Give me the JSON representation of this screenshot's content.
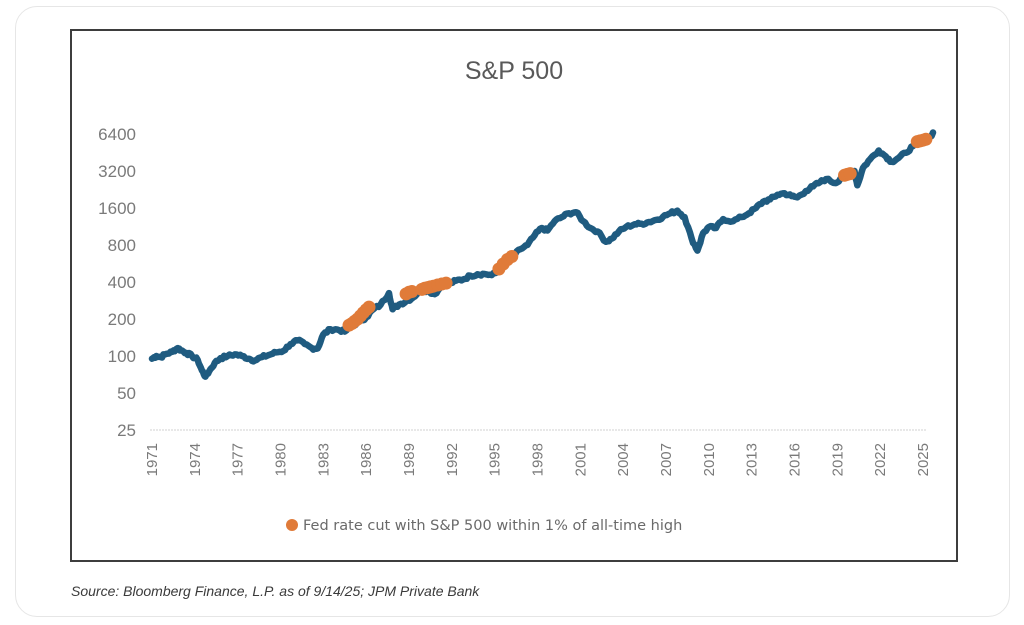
{
  "source_note": "Source: Bloomberg Finance, L.P. as of 9/14/25; JPM Private Bank",
  "colors": {
    "series": "#1f5b80",
    "highlight": "#e07b39",
    "axis_text": "#7a7a7a",
    "title": "#595959"
  },
  "chart_data": {
    "type": "line",
    "title": "S&P 500",
    "xlabel": "",
    "ylabel": "",
    "yscale": "log2",
    "ylim": [
      25,
      6400
    ],
    "xlim": [
      1971,
      2025.7
    ],
    "y_ticks": [
      6400,
      3200,
      1600,
      800,
      400,
      200,
      100,
      50,
      25
    ],
    "x_ticks": [
      "1971",
      "1974",
      "1977",
      "1980",
      "1983",
      "1986",
      "1989",
      "1992",
      "1995",
      "1998",
      "2001",
      "2004",
      "2007",
      "2010",
      "2013",
      "2016",
      "2019",
      "2022",
      "2025"
    ],
    "grid": false,
    "legend": {
      "position": "bottom",
      "entries": [
        {
          "label": "Fed rate cut with S&P 500 within 1% of all-time high",
          "marker": "circle",
          "color": "#e07b39"
        }
      ]
    },
    "series": [
      {
        "name": "S&P 500",
        "x": [
          1971.0,
          1971.3,
          1971.6,
          1972.0,
          1972.4,
          1972.8,
          1973.0,
          1973.4,
          1973.8,
          1974.2,
          1974.5,
          1974.75,
          1975.0,
          1975.4,
          1975.8,
          1976.3,
          1976.8,
          1977.3,
          1977.8,
          1978.2,
          1978.7,
          1979.2,
          1979.7,
          1980.2,
          1980.7,
          1981.2,
          1981.7,
          1982.2,
          1982.6,
          1983.0,
          1983.5,
          1984.0,
          1984.5,
          1985.0,
          1985.5,
          1986.0,
          1986.5,
          1987.0,
          1987.6,
          1987.85,
          1988.3,
          1988.8,
          1989.3,
          1989.8,
          1990.3,
          1990.8,
          1991.3,
          1991.8,
          1992.3,
          1992.8,
          1993.3,
          1993.8,
          1994.3,
          1994.8,
          1995.3,
          1995.8,
          1996.3,
          1996.8,
          1997.3,
          1997.8,
          1998.3,
          1998.7,
          1999.2,
          1999.7,
          2000.2,
          2000.7,
          2001.2,
          2001.7,
          2002.2,
          2002.8,
          2003.2,
          2003.7,
          2004.2,
          2004.8,
          2005.3,
          2005.8,
          2006.3,
          2006.8,
          2007.3,
          2007.8,
          2008.3,
          2008.8,
          2009.2,
          2009.6,
          2010.0,
          2010.5,
          2011.0,
          2011.7,
          2012.3,
          2012.8,
          2013.3,
          2013.8,
          2014.3,
          2014.8,
          2015.3,
          2015.8,
          2016.2,
          2016.8,
          2017.3,
          2017.8,
          2018.2,
          2018.9,
          2019.3,
          2019.8,
          2020.2,
          2020.4,
          2020.8,
          2021.3,
          2021.9,
          2022.4,
          2022.8,
          2023.3,
          2023.8,
          2024.3,
          2024.8,
          2025.3,
          2025.7
        ],
        "values": [
          95,
          100,
          98,
          104,
          108,
          116,
          112,
          106,
          100,
          93,
          76,
          68,
          75,
          88,
          96,
          100,
          103,
          100,
          95,
          92,
          98,
          102,
          107,
          110,
          125,
          134,
          125,
          116,
          115,
          150,
          165,
          164,
          158,
          175,
          190,
          206,
          240,
          260,
          325,
          240,
          262,
          278,
          300,
          345,
          340,
          318,
          375,
          385,
          410,
          420,
          450,
          462,
          465,
          455,
          490,
          590,
          650,
          740,
          800,
          960,
          1100,
          1050,
          1250,
          1350,
          1450,
          1480,
          1250,
          1100,
          1030,
          850,
          900,
          1030,
          1120,
          1180,
          1190,
          1230,
          1280,
          1360,
          1450,
          1520,
          1350,
          900,
          720,
          1000,
          1120,
          1100,
          1300,
          1250,
          1350,
          1450,
          1600,
          1800,
          1880,
          2050,
          2110,
          2000,
          1950,
          2200,
          2400,
          2600,
          2750,
          2550,
          2850,
          3050,
          3200,
          2450,
          3400,
          4000,
          4700,
          4200,
          3800,
          4100,
          4500,
          5100,
          5800,
          5600,
          6580
        ]
      }
    ],
    "highlight_points": {
      "name": "Fed rate cut with S&P 500 within 1% of all-time high",
      "x": [
        1984.8,
        1985.0,
        1985.2,
        1985.4,
        1985.6,
        1985.8,
        1986.0,
        1986.2,
        1988.8,
        1989.0,
        1989.2,
        1989.9,
        1990.1,
        1990.3,
        1990.5,
        1990.7,
        1991.0,
        1991.3,
        1991.6,
        1995.3,
        1995.6,
        1995.9,
        1996.2,
        2019.5,
        2019.7,
        2019.9,
        2024.6,
        2024.8,
        2025.0,
        2025.2
      ],
      "values": [
        178,
        184,
        192,
        200,
        212,
        225,
        238,
        250,
        320,
        330,
        335,
        348,
        356,
        360,
        365,
        370,
        378,
        385,
        392,
        510,
        560,
        610,
        645,
        2950,
        3000,
        3050,
        5550,
        5620,
        5700,
        5800
      ]
    }
  }
}
